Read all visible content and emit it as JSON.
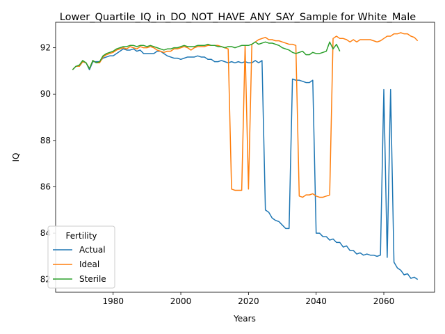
{
  "chart_data": {
    "type": "line",
    "title": "Lower_Quartile_IQ_in_DO_NOT_HAVE_ANY_SAY_Sample for White_Male",
    "xlabel": "Years",
    "ylabel": "IQ",
    "xlim": [
      1963,
      2075
    ],
    "ylim": [
      81.45,
      93.1
    ],
    "xticks": [
      1980,
      2000,
      2020,
      2040,
      2060
    ],
    "yticks": [
      82,
      84,
      86,
      88,
      90,
      92
    ],
    "grid": false,
    "legend": {
      "title": "Fertility",
      "position": "lower-left"
    },
    "series": [
      {
        "name": "Actual",
        "color": "#1f77b4",
        "points": [
          [
            1968,
            91.05
          ],
          [
            1969,
            91.2
          ],
          [
            1970,
            91.2
          ],
          [
            1971,
            91.4
          ],
          [
            1972,
            91.35
          ],
          [
            1973,
            91.05
          ],
          [
            1974,
            91.4
          ],
          [
            1975,
            91.4
          ],
          [
            1976,
            91.4
          ],
          [
            1977,
            91.55
          ],
          [
            1978,
            91.6
          ],
          [
            1979,
            91.65
          ],
          [
            1980,
            91.65
          ],
          [
            1981,
            91.75
          ],
          [
            1982,
            91.85
          ],
          [
            1983,
            91.95
          ],
          [
            1984,
            91.9
          ],
          [
            1985,
            91.9
          ],
          [
            1986,
            91.95
          ],
          [
            1987,
            91.85
          ],
          [
            1988,
            91.9
          ],
          [
            1989,
            91.75
          ],
          [
            1990,
            91.75
          ],
          [
            1991,
            91.75
          ],
          [
            1992,
            91.75
          ],
          [
            1993,
            91.85
          ],
          [
            1994,
            91.85
          ],
          [
            1995,
            91.75
          ],
          [
            1996,
            91.65
          ],
          [
            1997,
            91.6
          ],
          [
            1998,
            91.55
          ],
          [
            1999,
            91.55
          ],
          [
            2000,
            91.5
          ],
          [
            2001,
            91.55
          ],
          [
            2002,
            91.6
          ],
          [
            2003,
            91.6
          ],
          [
            2004,
            91.6
          ],
          [
            2005,
            91.65
          ],
          [
            2006,
            91.6
          ],
          [
            2007,
            91.6
          ],
          [
            2008,
            91.5
          ],
          [
            2009,
            91.5
          ],
          [
            2010,
            91.4
          ],
          [
            2011,
            91.4
          ],
          [
            2012,
            91.45
          ],
          [
            2013,
            91.4
          ],
          [
            2014,
            91.35
          ],
          [
            2015,
            91.4
          ],
          [
            2016,
            91.35
          ],
          [
            2017,
            91.4
          ],
          [
            2018,
            91.35
          ],
          [
            2019,
            91.4
          ],
          [
            2020,
            91.35
          ],
          [
            2021,
            91.35
          ],
          [
            2022,
            91.45
          ],
          [
            2023,
            91.35
          ],
          [
            2024,
            91.45
          ],
          [
            2025,
            85.0
          ],
          [
            2026,
            84.9
          ],
          [
            2027,
            84.65
          ],
          [
            2028,
            84.55
          ],
          [
            2029,
            84.5
          ],
          [
            2030,
            84.35
          ],
          [
            2031,
            84.2
          ],
          [
            2032,
            84.2
          ],
          [
            2033,
            90.65
          ],
          [
            2034,
            90.6
          ],
          [
            2035,
            90.6
          ],
          [
            2036,
            90.55
          ],
          [
            2037,
            90.5
          ],
          [
            2038,
            90.5
          ],
          [
            2039,
            90.6
          ],
          [
            2040,
            84.0
          ],
          [
            2041,
            84.0
          ],
          [
            2042,
            83.85
          ],
          [
            2043,
            83.85
          ],
          [
            2044,
            83.7
          ],
          [
            2045,
            83.75
          ],
          [
            2046,
            83.6
          ],
          [
            2047,
            83.6
          ],
          [
            2048,
            83.4
          ],
          [
            2049,
            83.45
          ],
          [
            2050,
            83.25
          ],
          [
            2051,
            83.25
          ],
          [
            2052,
            83.1
          ],
          [
            2053,
            83.15
          ],
          [
            2054,
            83.05
          ],
          [
            2055,
            83.1
          ],
          [
            2056,
            83.05
          ],
          [
            2057,
            83.05
          ],
          [
            2058,
            83.0
          ],
          [
            2059,
            83.05
          ],
          [
            2060,
            90.2
          ],
          [
            2061,
            82.95
          ],
          [
            2062,
            90.2
          ],
          [
            2063,
            82.75
          ],
          [
            2064,
            82.5
          ],
          [
            2065,
            82.4
          ],
          [
            2066,
            82.2
          ],
          [
            2067,
            82.25
          ],
          [
            2068,
            82.05
          ],
          [
            2069,
            82.1
          ],
          [
            2070,
            82.0
          ]
        ]
      },
      {
        "name": "Ideal",
        "color": "#ff7f0e",
        "points": [
          [
            1968,
            91.05
          ],
          [
            1969,
            91.2
          ],
          [
            1970,
            91.2
          ],
          [
            1971,
            91.4
          ],
          [
            1972,
            91.35
          ],
          [
            1973,
            91.1
          ],
          [
            1974,
            91.45
          ],
          [
            1975,
            91.35
          ],
          [
            1976,
            91.35
          ],
          [
            1977,
            91.6
          ],
          [
            1978,
            91.7
          ],
          [
            1979,
            91.75
          ],
          [
            1980,
            91.8
          ],
          [
            1981,
            91.9
          ],
          [
            1982,
            91.95
          ],
          [
            1983,
            92.0
          ],
          [
            1984,
            91.95
          ],
          [
            1985,
            92.05
          ],
          [
            1986,
            92.0
          ],
          [
            1987,
            91.95
          ],
          [
            1988,
            92.05
          ],
          [
            1989,
            92.0
          ],
          [
            1990,
            92.0
          ],
          [
            1991,
            92.05
          ],
          [
            1992,
            92.0
          ],
          [
            1993,
            91.9
          ],
          [
            1994,
            91.85
          ],
          [
            1995,
            91.8
          ],
          [
            1996,
            91.85
          ],
          [
            1997,
            91.85
          ],
          [
            1998,
            91.95
          ],
          [
            1999,
            91.95
          ],
          [
            2000,
            92.0
          ],
          [
            2001,
            92.05
          ],
          [
            2002,
            92.0
          ],
          [
            2003,
            91.9
          ],
          [
            2004,
            92.0
          ],
          [
            2005,
            92.05
          ],
          [
            2006,
            92.05
          ],
          [
            2007,
            92.05
          ],
          [
            2008,
            92.1
          ],
          [
            2009,
            92.1
          ],
          [
            2010,
            92.1
          ],
          [
            2011,
            92.1
          ],
          [
            2012,
            92.05
          ],
          [
            2013,
            92.0
          ],
          [
            2014,
            91.95
          ],
          [
            2015,
            85.9
          ],
          [
            2016,
            85.85
          ],
          [
            2017,
            85.85
          ],
          [
            2018,
            85.85
          ],
          [
            2019,
            92.1
          ],
          [
            2020,
            85.9
          ],
          [
            2021,
            92.15
          ],
          [
            2022,
            92.25
          ],
          [
            2023,
            92.35
          ],
          [
            2024,
            92.4
          ],
          [
            2025,
            92.45
          ],
          [
            2026,
            92.35
          ],
          [
            2027,
            92.35
          ],
          [
            2028,
            92.3
          ],
          [
            2029,
            92.3
          ],
          [
            2030,
            92.25
          ],
          [
            2031,
            92.2
          ],
          [
            2032,
            92.15
          ],
          [
            2033,
            92.15
          ],
          [
            2034,
            92.1
          ],
          [
            2035,
            85.6
          ],
          [
            2036,
            85.55
          ],
          [
            2037,
            85.65
          ],
          [
            2038,
            85.65
          ],
          [
            2039,
            85.7
          ],
          [
            2040,
            85.6
          ],
          [
            2041,
            85.55
          ],
          [
            2042,
            85.55
          ],
          [
            2043,
            85.6
          ],
          [
            2044,
            85.65
          ],
          [
            2045,
            92.4
          ],
          [
            2046,
            92.5
          ],
          [
            2047,
            92.4
          ],
          [
            2048,
            92.4
          ],
          [
            2049,
            92.35
          ],
          [
            2050,
            92.25
          ],
          [
            2051,
            92.35
          ],
          [
            2052,
            92.25
          ],
          [
            2053,
            92.35
          ],
          [
            2054,
            92.35
          ],
          [
            2055,
            92.35
          ],
          [
            2056,
            92.35
          ],
          [
            2057,
            92.3
          ],
          [
            2058,
            92.25
          ],
          [
            2059,
            92.3
          ],
          [
            2060,
            92.4
          ],
          [
            2061,
            92.5
          ],
          [
            2062,
            92.5
          ],
          [
            2063,
            92.6
          ],
          [
            2064,
            92.6
          ],
          [
            2065,
            92.65
          ],
          [
            2066,
            92.6
          ],
          [
            2067,
            92.6
          ],
          [
            2068,
            92.5
          ],
          [
            2069,
            92.45
          ],
          [
            2070,
            92.3
          ]
        ]
      },
      {
        "name": "Sterile",
        "color": "#2ca02c",
        "points": [
          [
            1968,
            91.05
          ],
          [
            1969,
            91.2
          ],
          [
            1970,
            91.25
          ],
          [
            1971,
            91.45
          ],
          [
            1972,
            91.35
          ],
          [
            1973,
            91.1
          ],
          [
            1974,
            91.45
          ],
          [
            1975,
            91.35
          ],
          [
            1976,
            91.4
          ],
          [
            1977,
            91.65
          ],
          [
            1978,
            91.75
          ],
          [
            1979,
            91.8
          ],
          [
            1980,
            91.85
          ],
          [
            1981,
            91.95
          ],
          [
            1982,
            92.0
          ],
          [
            1983,
            92.05
          ],
          [
            1984,
            92.05
          ],
          [
            1985,
            92.1
          ],
          [
            1986,
            92.1
          ],
          [
            1987,
            92.05
          ],
          [
            1988,
            92.1
          ],
          [
            1989,
            92.1
          ],
          [
            1990,
            92.05
          ],
          [
            1991,
            92.1
          ],
          [
            1992,
            92.05
          ],
          [
            1993,
            92.0
          ],
          [
            1994,
            91.95
          ],
          [
            1995,
            91.9
          ],
          [
            1996,
            91.95
          ],
          [
            1997,
            91.95
          ],
          [
            1998,
            92.0
          ],
          [
            1999,
            92.0
          ],
          [
            2000,
            92.05
          ],
          [
            2001,
            92.1
          ],
          [
            2002,
            92.05
          ],
          [
            2003,
            92.05
          ],
          [
            2004,
            92.05
          ],
          [
            2005,
            92.1
          ],
          [
            2006,
            92.1
          ],
          [
            2007,
            92.1
          ],
          [
            2008,
            92.15
          ],
          [
            2009,
            92.1
          ],
          [
            2010,
            92.1
          ],
          [
            2011,
            92.05
          ],
          [
            2012,
            92.05
          ],
          [
            2013,
            92.0
          ],
          [
            2014,
            92.05
          ],
          [
            2015,
            92.05
          ],
          [
            2016,
            92.0
          ],
          [
            2017,
            92.05
          ],
          [
            2018,
            92.1
          ],
          [
            2019,
            92.1
          ],
          [
            2020,
            92.1
          ],
          [
            2021,
            92.15
          ],
          [
            2022,
            92.25
          ],
          [
            2023,
            92.15
          ],
          [
            2024,
            92.2
          ],
          [
            2025,
            92.25
          ],
          [
            2026,
            92.2
          ],
          [
            2027,
            92.2
          ],
          [
            2028,
            92.15
          ],
          [
            2029,
            92.1
          ],
          [
            2030,
            92.0
          ],
          [
            2031,
            91.95
          ],
          [
            2032,
            91.9
          ],
          [
            2033,
            91.8
          ],
          [
            2034,
            91.75
          ],
          [
            2035,
            91.8
          ],
          [
            2036,
            91.85
          ],
          [
            2037,
            91.7
          ],
          [
            2038,
            91.7
          ],
          [
            2039,
            91.8
          ],
          [
            2040,
            91.75
          ],
          [
            2041,
            91.75
          ],
          [
            2042,
            91.8
          ],
          [
            2043,
            91.85
          ],
          [
            2044,
            92.25
          ],
          [
            2045,
            91.95
          ],
          [
            2046,
            92.15
          ],
          [
            2047,
            91.85
          ]
        ]
      }
    ]
  }
}
